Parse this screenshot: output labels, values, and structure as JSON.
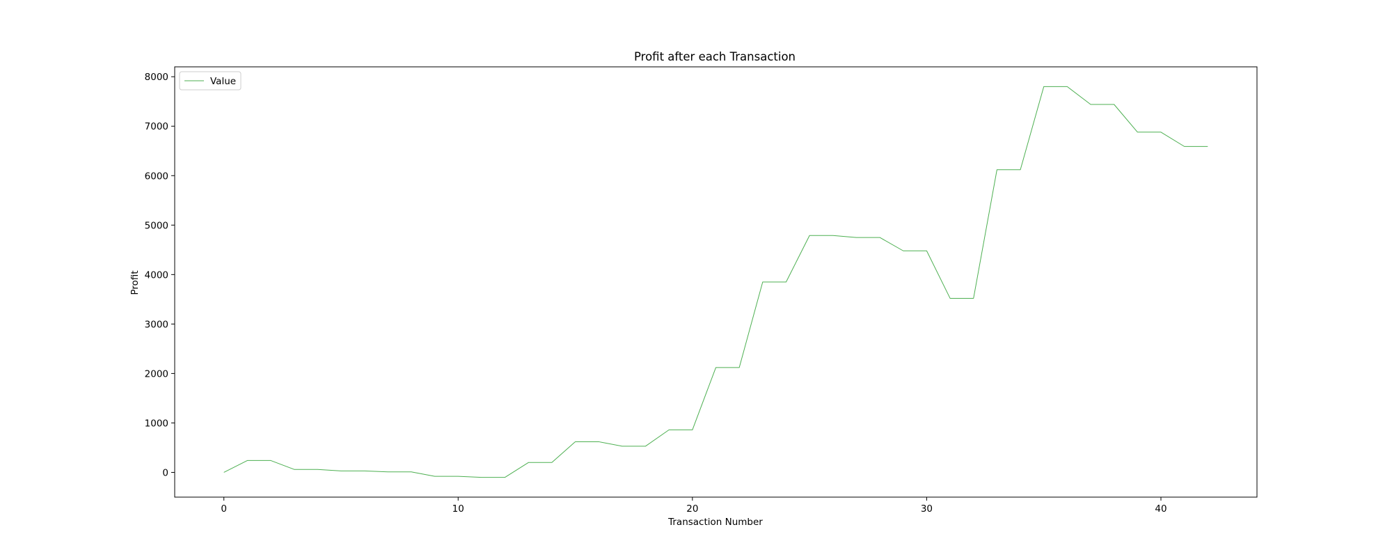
{
  "chart_data": {
    "type": "line",
    "title": "Profit after each Transaction",
    "xlabel": "Transaction Number",
    "ylabel": "Profit",
    "xlim": [
      -2.1,
      44.1
    ],
    "ylim": [
      -500,
      8200
    ],
    "xticks": [
      0,
      10,
      20,
      30,
      40
    ],
    "yticks": [
      0,
      1000,
      2000,
      3000,
      4000,
      5000,
      6000,
      7000,
      8000
    ],
    "grid": false,
    "legend_position": "top-left",
    "series": [
      {
        "name": "Value",
        "color": "#4caf50",
        "x": [
          0,
          1,
          2,
          3,
          4,
          5,
          6,
          7,
          8,
          9,
          10,
          11,
          12,
          13,
          14,
          15,
          16,
          17,
          18,
          19,
          20,
          21,
          22,
          23,
          24,
          25,
          26,
          27,
          28,
          29,
          30,
          31,
          32,
          33,
          34,
          35,
          36,
          37,
          38,
          39,
          40,
          41,
          42
        ],
        "values": [
          0,
          240,
          240,
          60,
          60,
          30,
          30,
          10,
          10,
          -80,
          -80,
          -100,
          -100,
          200,
          200,
          620,
          620,
          530,
          530,
          860,
          860,
          2120,
          2120,
          3850,
          3850,
          4790,
          4790,
          4750,
          4750,
          4480,
          4480,
          3520,
          3520,
          6120,
          6120,
          7800,
          7800,
          7440,
          7440,
          6880,
          6880,
          6590,
          6590
        ]
      }
    ]
  }
}
